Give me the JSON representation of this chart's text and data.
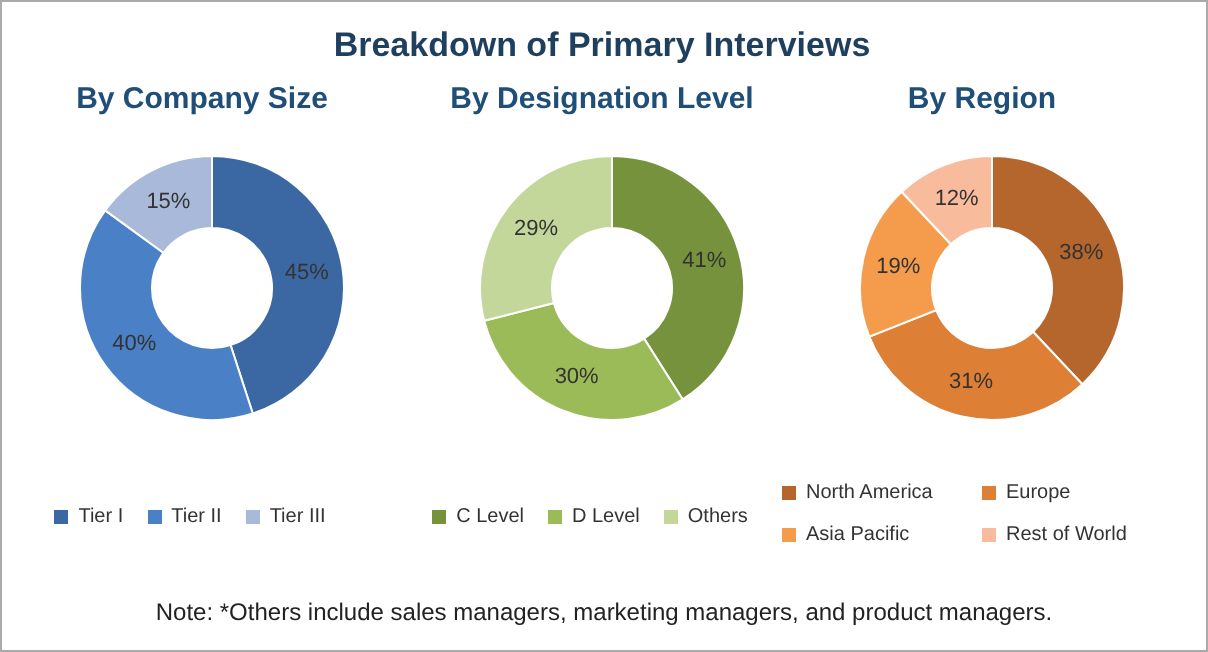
{
  "chart_data": [
    {
      "type": "donut",
      "title": "By Company Size",
      "categories": [
        "Tier I",
        "Tier II",
        "Tier III"
      ],
      "values": [
        45,
        40,
        15
      ],
      "colors": [
        "#3b68a3",
        "#4a80c6",
        "#a8b9d9"
      ],
      "value_labels": [
        "45%",
        "40%",
        "15%"
      ],
      "legend": "bottom"
    },
    {
      "type": "donut",
      "title": "Breakdown of Primary Interviews",
      "subtitle": "By Designation Level",
      "categories": [
        "C Level",
        "D Level",
        "Others"
      ],
      "values": [
        41,
        30,
        29
      ],
      "colors": [
        "#76923c",
        "#9bbb59",
        "#c4d79b"
      ],
      "value_labels": [
        "41%",
        "30%",
        "29%"
      ],
      "legend": "bottom"
    },
    {
      "type": "donut",
      "title": "By Region",
      "categories": [
        "North America",
        "Europe",
        "Asia Pacific",
        "Rest of World"
      ],
      "values": [
        38,
        31,
        19,
        12
      ],
      "colors": [
        "#b5662d",
        "#dd7f35",
        "#f59b4c",
        "#f8bb9c"
      ],
      "value_labels": [
        "38%",
        "31%",
        "19%",
        "12%"
      ],
      "legend": "bottom",
      "annotations": [
        "Note: *Others include sales managers, marketing managers, and product managers."
      ]
    }
  ]
}
